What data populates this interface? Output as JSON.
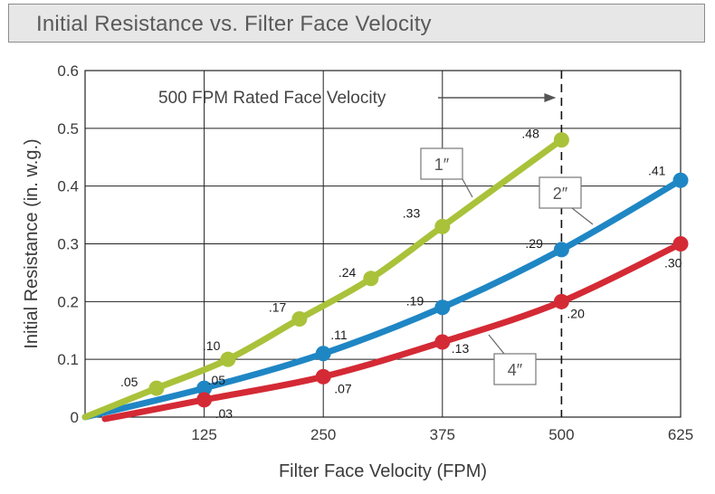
{
  "chart_data": {
    "type": "line",
    "title": "Initial Resistance vs. Filter Face Velocity",
    "xlabel": "Filter Face Velocity (FPM)",
    "ylabel": "Initial Resistance (in. w.g.)",
    "xlim": [
      0,
      625
    ],
    "ylim": [
      0,
      0.6
    ],
    "x_ticks": [
      125,
      250,
      375,
      500,
      625
    ],
    "x_tick_labels": [
      "125",
      "250",
      "375",
      "500",
      "625"
    ],
    "y_ticks": [
      0,
      0.1,
      0.2,
      0.3,
      0.4,
      0.5,
      0.6
    ],
    "y_tick_labels": [
      "0",
      "0.1",
      "0.2",
      "0.3",
      "0.4",
      "0.5",
      "0.6"
    ],
    "grid": true,
    "annotation": {
      "text": "500 FPM Rated Face Velocity",
      "x": 500
    },
    "series": [
      {
        "name": "1″",
        "color": "#a9c23a",
        "points": [
          {
            "x": 75,
            "y": 0.05,
            "label": ".05"
          },
          {
            "x": 150,
            "y": 0.1,
            "label": ".10"
          },
          {
            "x": 225,
            "y": 0.17,
            "label": ".17"
          },
          {
            "x": 300,
            "y": 0.24,
            "label": ".24"
          },
          {
            "x": 375,
            "y": 0.33,
            "label": ".33"
          },
          {
            "x": 500,
            "y": 0.48,
            "label": ".48"
          }
        ]
      },
      {
        "name": "2″",
        "color": "#1f86c4",
        "points": [
          {
            "x": 125,
            "y": 0.05,
            "label": ".05"
          },
          {
            "x": 250,
            "y": 0.11,
            "label": ".11"
          },
          {
            "x": 375,
            "y": 0.19,
            "label": ".19"
          },
          {
            "x": 500,
            "y": 0.29,
            "label": ".29"
          },
          {
            "x": 625,
            "y": 0.41,
            "label": ".41"
          }
        ]
      },
      {
        "name": "4″",
        "color": "#d42a35",
        "points": [
          {
            "x": 125,
            "y": 0.03,
            "label": ".03"
          },
          {
            "x": 250,
            "y": 0.07,
            "label": ".07"
          },
          {
            "x": 375,
            "y": 0.13,
            "label": ".13"
          },
          {
            "x": 500,
            "y": 0.2,
            "label": ".20"
          },
          {
            "x": 625,
            "y": 0.3,
            "label": ".30"
          }
        ]
      }
    ]
  }
}
